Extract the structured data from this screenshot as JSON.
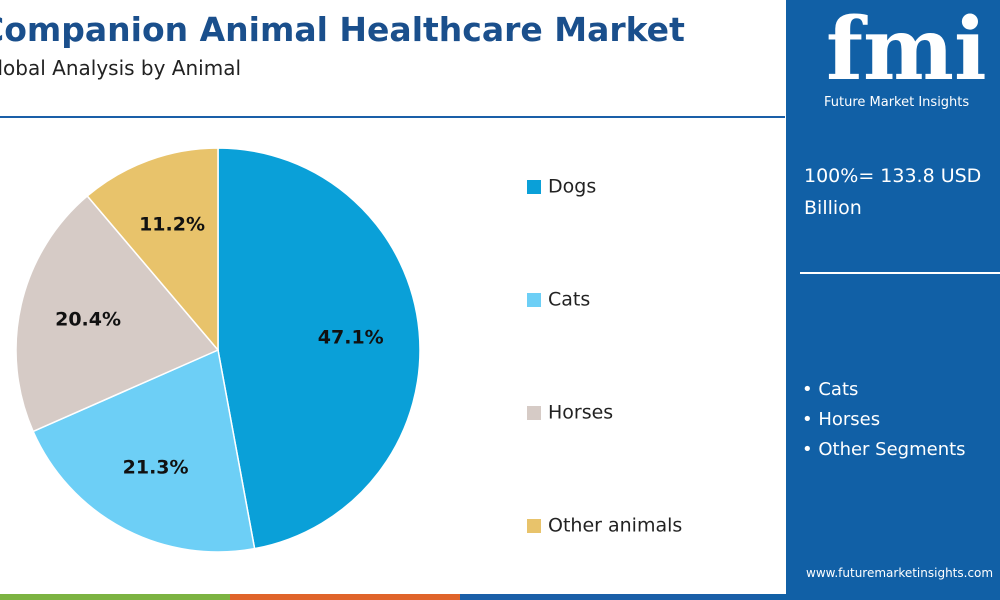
{
  "chart_data": {
    "type": "pie",
    "title": "Companion Animal Healthcare Market",
    "subtitle": "Global Analysis by Animal",
    "categories": [
      "Dogs",
      "Cats",
      "Horses",
      "Other animals"
    ],
    "values": [
      47.1,
      21.3,
      20.4,
      11.2
    ],
    "value_labels": [
      "47.1%",
      "21.3%",
      "20.4%",
      "11.2%"
    ],
    "colors": [
      "#0aa0d8",
      "#6dcff6",
      "#d6cbc6",
      "#e8c36b"
    ]
  },
  "logo": {
    "mark": "fmi",
    "name": "Future Market Insights"
  },
  "panel": {
    "total": "100%= 133.8 USD Billion",
    "bullets": [
      "Cats",
      "Horses",
      "Other Segments"
    ],
    "url": "www.futuremarketinsights.com"
  }
}
